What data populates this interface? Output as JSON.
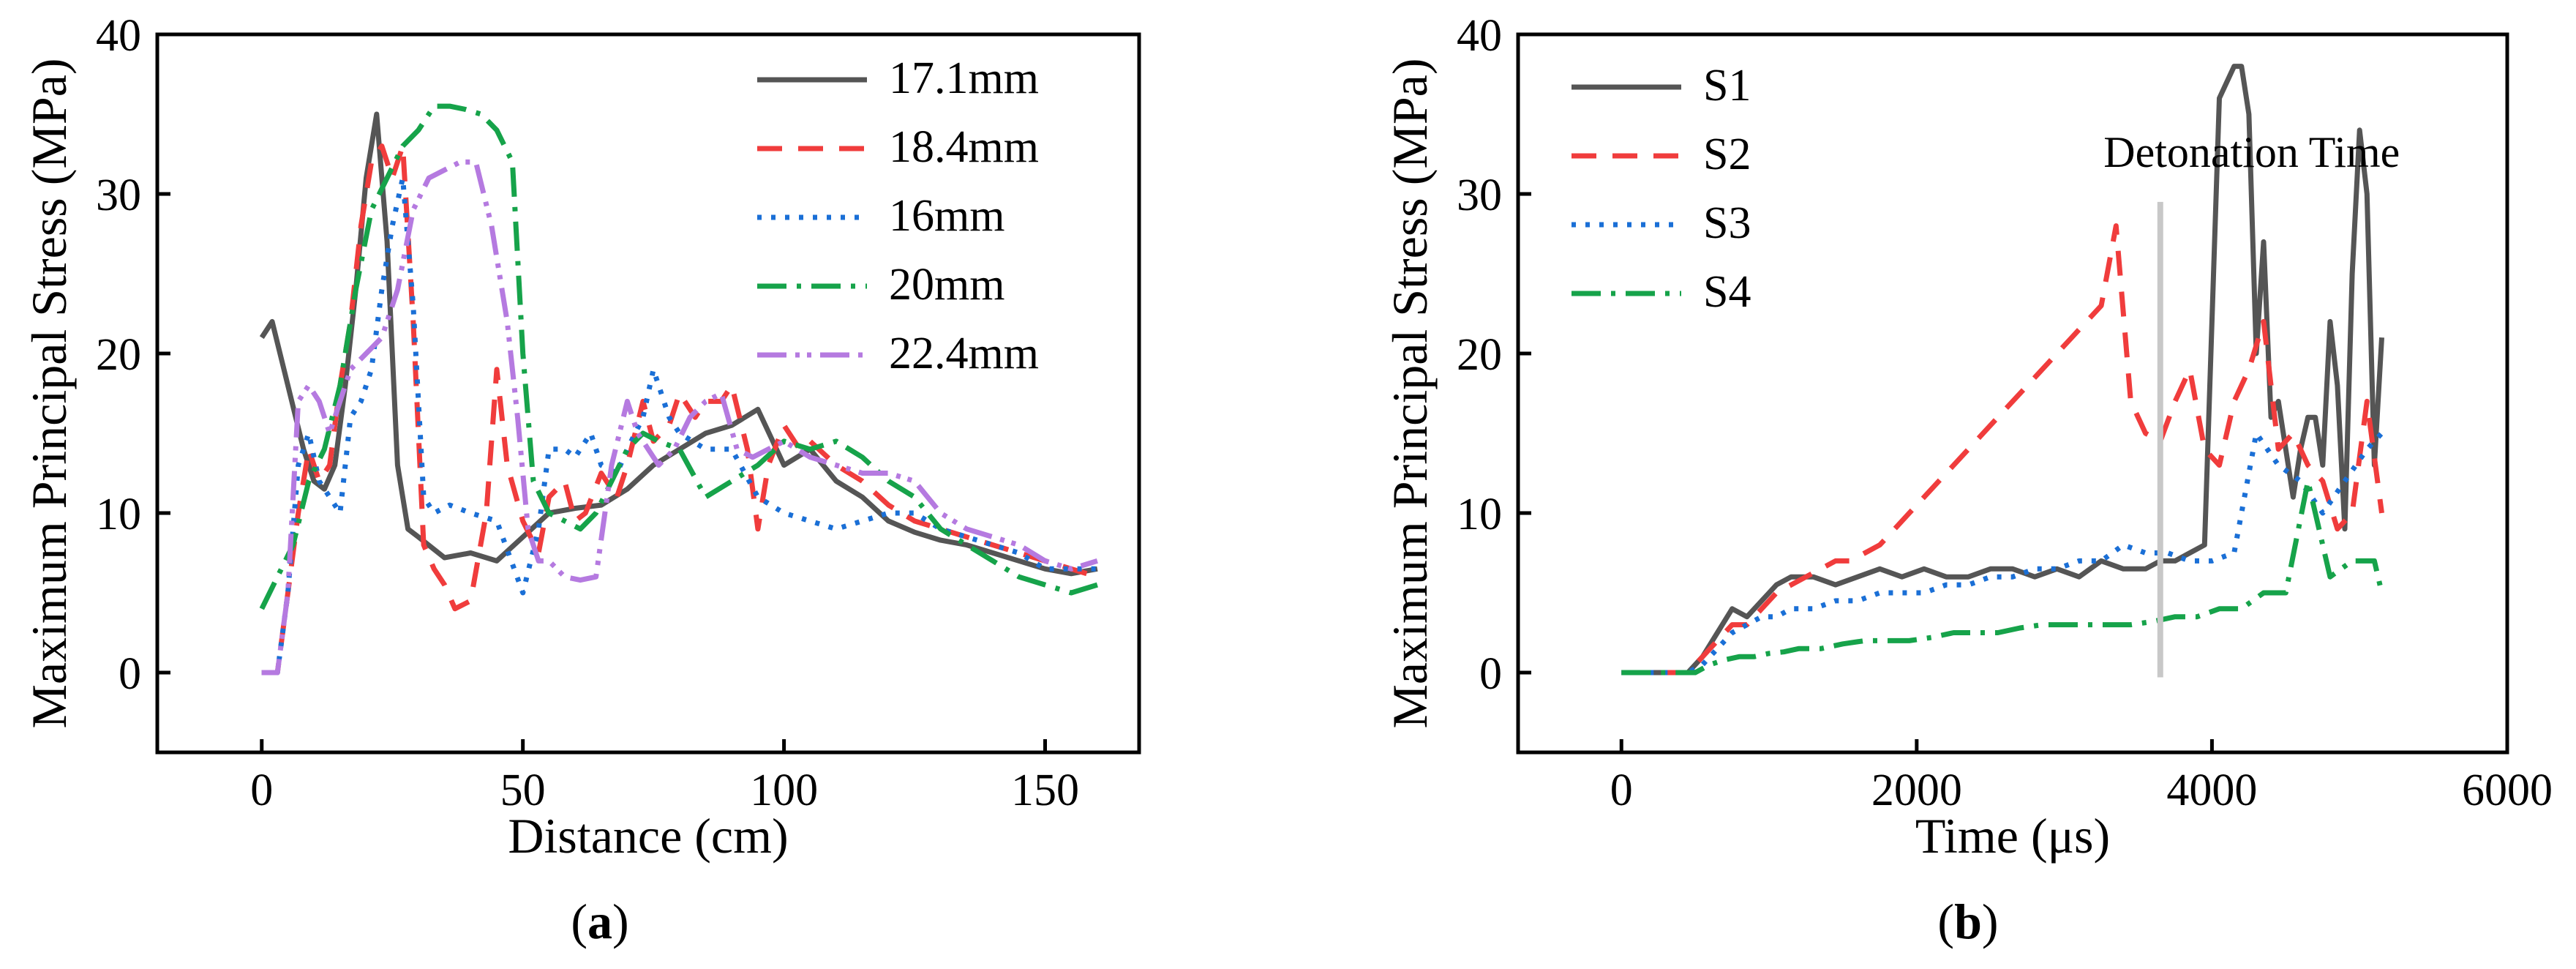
{
  "chart_data": [
    {
      "type": "line",
      "panel_caption": "(a)",
      "xlabel": "Distance (cm)",
      "ylabel": "Maximum Principal Stress (MPa)",
      "xlim": [
        -20,
        168
      ],
      "ylim": [
        -5,
        40
      ],
      "xticks": [
        0,
        50,
        100,
        150
      ],
      "yticks": [
        0,
        10,
        20,
        30,
        40
      ],
      "grid": false,
      "legend_position": "top-right",
      "series": [
        {
          "name": "17.1mm",
          "color": "#555555",
          "dash": "",
          "x": [
            0,
            2,
            5,
            8,
            10,
            12,
            14,
            16,
            18,
            20,
            22,
            24,
            26,
            28,
            30,
            35,
            40,
            45,
            50,
            55,
            60,
            65,
            70,
            75,
            80,
            85,
            90,
            95,
            100,
            105,
            110,
            115,
            120,
            125,
            130,
            135,
            140,
            145,
            150,
            155,
            160
          ],
          "y": [
            21,
            22,
            18,
            14,
            12,
            11.5,
            13,
            18,
            24,
            31,
            35,
            27,
            13,
            9,
            8.5,
            7.2,
            7.5,
            7,
            8.5,
            10,
            10.3,
            10.5,
            11.5,
            13,
            14,
            15,
            15.5,
            16.5,
            13,
            14,
            12,
            11,
            9.5,
            8.8,
            8.3,
            8,
            7.5,
            7,
            6.5,
            6.2,
            6.5
          ]
        },
        {
          "name": "18.4mm",
          "color": "#f03c3c",
          "dash": "34,22",
          "x": [
            0,
            3,
            5,
            7,
            9,
            11,
            13,
            15,
            17,
            19,
            21,
            23,
            25,
            27,
            29,
            31,
            33,
            35,
            37,
            40,
            43,
            45,
            47,
            50,
            53,
            55,
            58,
            60,
            62,
            65,
            68,
            70,
            73,
            75,
            78,
            80,
            83,
            85,
            88,
            90,
            93,
            95,
            97,
            100,
            103,
            105,
            110,
            115,
            120,
            125,
            130,
            135,
            140,
            145,
            150,
            155,
            160
          ],
          "y": [
            0,
            0,
            5,
            10,
            14,
            12,
            13,
            18,
            22,
            28,
            32,
            33,
            31,
            33,
            22,
            8,
            6.5,
            5.5,
            4,
            4.5,
            10,
            19,
            13,
            9.5,
            7.5,
            11,
            12,
            9.5,
            10,
            12.5,
            11,
            13,
            17,
            14.5,
            15.5,
            17.5,
            16,
            17,
            17,
            18,
            14,
            9,
            13,
            15.5,
            14,
            14.5,
            13,
            12,
            10.5,
            9.5,
            9,
            8.5,
            8,
            7.5,
            7,
            6.5,
            6
          ]
        },
        {
          "name": "16mm",
          "color": "#1a6fd6",
          "dash": "6,13",
          "x": [
            0,
            3,
            5,
            7,
            9,
            11,
            13,
            15,
            17,
            19,
            21,
            23,
            25,
            27,
            29,
            31,
            33,
            36,
            40,
            45,
            50,
            53,
            55,
            58,
            60,
            63,
            65,
            68,
            70,
            73,
            75,
            78,
            80,
            85,
            90,
            95,
            100,
            105,
            110,
            115,
            120,
            125,
            130,
            135,
            140,
            145,
            150,
            155,
            160
          ],
          "y": [
            0,
            0,
            5,
            13,
            15,
            12,
            11,
            10,
            16,
            17,
            19,
            24,
            28,
            31,
            23,
            11,
            10,
            10.5,
            10,
            9.5,
            5,
            9,
            14,
            14,
            13.5,
            15,
            13,
            12.5,
            14,
            16,
            19,
            16,
            15,
            14,
            14,
            11,
            10,
            9.5,
            9,
            9.5,
            10,
            10,
            9,
            8.5,
            8,
            7.5,
            6.5,
            6.5,
            6.5
          ]
        },
        {
          "name": "20mm",
          "color": "#16a34a",
          "dash": "40,14,6,14",
          "x": [
            0,
            3,
            6,
            9,
            12,
            15,
            18,
            21,
            24,
            27,
            30,
            33,
            36,
            39,
            42,
            45,
            48,
            50,
            52,
            55,
            58,
            61,
            64,
            67,
            70,
            73,
            76,
            80,
            85,
            90,
            95,
            100,
            105,
            110,
            115,
            120,
            125,
            130,
            135,
            140,
            145,
            150,
            155,
            160
          ],
          "y": [
            4,
            6,
            8,
            12,
            14,
            18,
            24,
            29,
            31,
            33,
            34,
            35.5,
            35.5,
            35.3,
            35,
            34,
            32,
            20,
            12,
            10,
            9.5,
            9,
            10,
            12,
            14,
            15,
            14.5,
            14,
            11,
            12,
            13,
            14.5,
            14,
            14.5,
            13.5,
            12,
            11,
            9,
            8,
            7,
            6,
            5.5,
            5,
            5.5
          ]
        },
        {
          "name": "22.4mm",
          "color": "#b57ae0",
          "dash": "40,12,6,10,6,12",
          "x": [
            0,
            3,
            5,
            7,
            9,
            11,
            13,
            15,
            17,
            20,
            23,
            26,
            29,
            32,
            35,
            38,
            41,
            44,
            47,
            49,
            51,
            53,
            55,
            58,
            61,
            64,
            67,
            70,
            72,
            74,
            76,
            79,
            82,
            85,
            88,
            91,
            94,
            97,
            100,
            105,
            110,
            115,
            120,
            125,
            130,
            135,
            140,
            145,
            150,
            155,
            160
          ],
          "y": [
            0,
            0,
            5,
            17,
            18,
            17,
            15,
            17,
            19,
            20,
            21,
            24,
            29,
            31,
            31.5,
            32,
            32,
            28,
            22,
            16,
            9,
            7,
            7,
            6,
            5.8,
            6,
            13,
            17,
            15,
            14,
            13,
            14,
            16,
            17,
            17.5,
            14,
            13.5,
            14,
            14.5,
            13.5,
            13,
            12.5,
            12.5,
            12,
            10,
            9,
            8.5,
            8,
            7,
            6.5,
            7
          ]
        }
      ]
    },
    {
      "type": "line",
      "panel_caption": "(b)",
      "xlabel": "Time (μs)",
      "ylabel": "Maximum Principal Stress (MPa)",
      "xlim": [
        -700,
        6000
      ],
      "ylim": [
        -5,
        40
      ],
      "xticks": [
        0,
        2000,
        4000,
        6000
      ],
      "yticks": [
        0,
        10,
        20,
        30,
        40
      ],
      "grid": false,
      "legend_position": "top-left",
      "annotation": {
        "text": "Detonation Time",
        "x": 3650
      },
      "series": [
        {
          "name": "S1",
          "color": "#555555",
          "dash": "",
          "x": [
            0,
            300,
            450,
            550,
            650,
            750,
            850,
            950,
            1050,
            1150,
            1300,
            1450,
            1600,
            1750,
            1900,
            2050,
            2200,
            2350,
            2500,
            2650,
            2800,
            2950,
            3100,
            3250,
            3400,
            3550,
            3650,
            3750,
            3850,
            3950,
            4050,
            4100,
            4150,
            4200,
            4250,
            4300,
            4350,
            4400,
            4450,
            4500,
            4550,
            4600,
            4650,
            4700,
            4750,
            4800,
            4850,
            4900,
            4950,
            5000,
            5050,
            5100,
            5150
          ],
          "y": [
            0,
            0,
            0,
            1,
            2.5,
            4,
            3.5,
            4.5,
            5.5,
            6,
            6,
            5.5,
            6,
            6.5,
            6,
            6.5,
            6,
            6,
            6.5,
            6.5,
            6,
            6.5,
            6,
            7,
            6.5,
            6.5,
            7,
            7,
            7.5,
            8,
            36,
            37,
            38,
            38,
            35,
            20,
            27,
            16,
            17,
            14,
            11,
            14,
            16,
            16,
            13,
            22,
            18,
            9,
            25,
            34,
            30,
            13,
            21
          ]
        },
        {
          "name": "S2",
          "color": "#f03c3c",
          "dash": "34,22",
          "x": [
            0,
            450,
            550,
            650,
            750,
            850,
            950,
            1050,
            1150,
            1250,
            1350,
            1450,
            1550,
            1650,
            1750,
            1850,
            1950,
            2050,
            2150,
            2250,
            2350,
            2450,
            2550,
            2650,
            2750,
            2850,
            2950,
            3050,
            3150,
            3250,
            3350,
            3450,
            3550,
            3650,
            3750,
            3850,
            3950,
            4050,
            4150,
            4250,
            4350,
            4450,
            4550,
            4650,
            4750,
            4850,
            4950,
            5050,
            5150
          ],
          "y": [
            0,
            0,
            1,
            2,
            3,
            3,
            4,
            5,
            5.5,
            6,
            6.5,
            7,
            7,
            7.5,
            8,
            9,
            10,
            11,
            12,
            13,
            14,
            15,
            16,
            17,
            18,
            19,
            20,
            21,
            22,
            23,
            28,
            17,
            15,
            14.5,
            17,
            19,
            14,
            13,
            17,
            19,
            22,
            14,
            15,
            13,
            12,
            9,
            10,
            17,
            10
          ]
        },
        {
          "name": "S3",
          "color": "#1a6fd6",
          "dash": "6,13",
          "x": [
            0,
            450,
            550,
            650,
            750,
            850,
            950,
            1050,
            1150,
            1300,
            1450,
            1600,
            1750,
            1900,
            2050,
            2200,
            2350,
            2500,
            2650,
            2800,
            2950,
            3100,
            3250,
            3400,
            3550,
            3700,
            3850,
            4000,
            4150,
            4300,
            4450,
            4600,
            4750,
            4900,
            5050,
            5150
          ],
          "y": [
            0,
            0,
            0.5,
            1.5,
            2.5,
            3,
            3.5,
            3.5,
            4,
            4,
            4.5,
            4.5,
            5,
            5,
            5,
            5.5,
            5.5,
            6,
            6,
            6.5,
            6.5,
            7,
            7,
            8,
            7.5,
            7.5,
            7,
            7,
            7.5,
            15,
            13,
            12,
            10,
            12,
            14,
            15
          ]
        },
        {
          "name": "S4",
          "color": "#16a34a",
          "dash": "40,14,6,14",
          "x": [
            0,
            500,
            600,
            700,
            800,
            900,
            1000,
            1100,
            1200,
            1350,
            1500,
            1650,
            1800,
            1950,
            2100,
            2250,
            2400,
            2550,
            2700,
            2850,
            3000,
            3150,
            3300,
            3450,
            3600,
            3750,
            3900,
            4050,
            4200,
            4350,
            4500,
            4650,
            4800,
            4950,
            5100,
            5150
          ],
          "y": [
            0,
            0,
            0.5,
            0.8,
            1,
            1,
            1.2,
            1.3,
            1.5,
            1.5,
            1.8,
            2,
            2,
            2,
            2.2,
            2.5,
            2.5,
            2.5,
            2.8,
            3,
            3,
            3,
            3,
            3,
            3.2,
            3.5,
            3.5,
            4,
            4,
            5,
            5,
            12,
            6,
            7,
            7,
            5
          ]
        }
      ]
    }
  ]
}
